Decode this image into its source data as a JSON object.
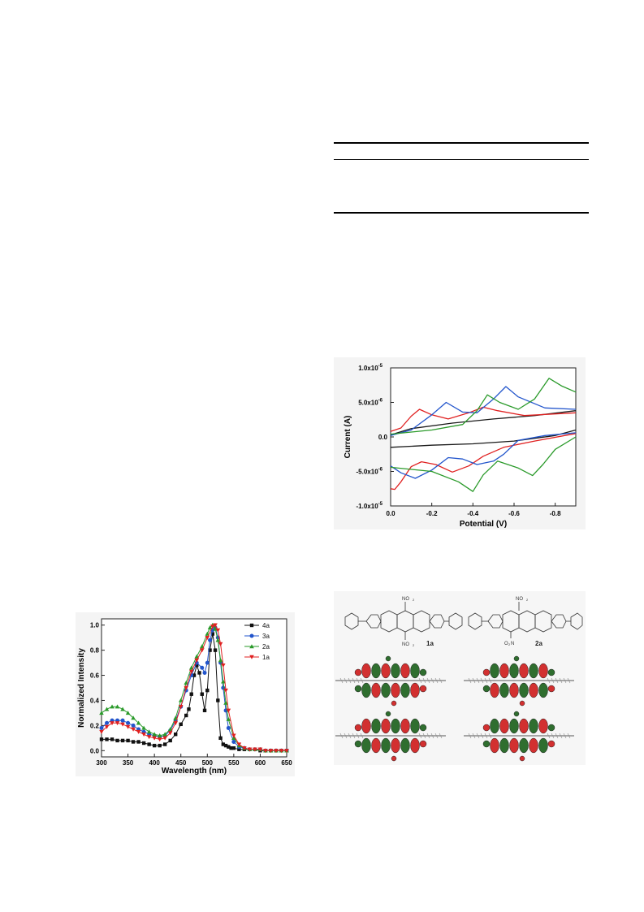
{
  "chart_data": [
    {
      "type": "line",
      "xlabel": "Potential  (V)",
      "ylabel": "Current  (A)",
      "xlim": [
        0.0,
        -0.9
      ],
      "ylim": [
        -1e-05,
        1e-05
      ],
      "x_ticks": [
        "0.0",
        "-0.2",
        "-0.4",
        "-0.6",
        "-0.8"
      ],
      "y_ticks": [
        "1.0x10",
        "5.0x10",
        "0.0",
        "-5.0x10",
        "-1.0x10"
      ],
      "y_tick_exponents": [
        "-5",
        "-6",
        "",
        "-6",
        "-5"
      ],
      "series": [
        {
          "color": "#1a1a1a",
          "forward": [
            [
              0.0,
              3e-07
            ],
            [
              -0.1,
              1.2e-06
            ],
            [
              -0.3,
              2e-06
            ],
            [
              -0.5,
              2.6e-06
            ],
            [
              -0.7,
              3.1e-06
            ],
            [
              -0.9,
              3.8e-06
            ]
          ],
          "reverse": [
            [
              -0.9,
              1e-06
            ],
            [
              -0.8,
              2e-07
            ],
            [
              -0.6,
              -6e-07
            ],
            [
              -0.4,
              -1e-06
            ],
            [
              -0.2,
              -1.2e-06
            ],
            [
              0.0,
              -1.5e-06
            ]
          ]
        },
        {
          "color": "#e02020",
          "forward": [
            [
              0.0,
              8e-07
            ],
            [
              -0.05,
              1.3e-06
            ],
            [
              -0.1,
              3e-06
            ],
            [
              -0.14,
              4e-06
            ],
            [
              -0.2,
              3.2e-06
            ],
            [
              -0.28,
              2.6e-06
            ],
            [
              -0.38,
              3.5e-06
            ],
            [
              -0.45,
              4.3e-06
            ],
            [
              -0.52,
              3.8e-06
            ],
            [
              -0.65,
              3.1e-06
            ],
            [
              -0.9,
              3.5e-06
            ]
          ],
          "reverse": [
            [
              -0.9,
              5e-07
            ],
            [
              -0.7,
              -6e-07
            ],
            [
              -0.55,
              -1.5e-06
            ],
            [
              -0.45,
              -2.8e-06
            ],
            [
              -0.38,
              -4.2e-06
            ],
            [
              -0.3,
              -5.1e-06
            ],
            [
              -0.22,
              -4e-06
            ],
            [
              -0.15,
              -3.6e-06
            ],
            [
              -0.1,
              -4.3e-06
            ],
            [
              -0.05,
              -6.5e-06
            ],
            [
              -0.02,
              -7.6e-06
            ],
            [
              0.0,
              -7.5e-06
            ]
          ]
        },
        {
          "color": "#2255cc",
          "forward": [
            [
              0.0,
              2e-07
            ],
            [
              -0.1,
              1e-06
            ],
            [
              -0.2,
              3.2e-06
            ],
            [
              -0.27,
              5e-06
            ],
            [
              -0.35,
              3.6e-06
            ],
            [
              -0.42,
              3.5e-06
            ],
            [
              -0.5,
              5.5e-06
            ],
            [
              -0.56,
              7.3e-06
            ],
            [
              -0.62,
              5.8e-06
            ],
            [
              -0.75,
              4.2e-06
            ],
            [
              -0.9,
              4e-06
            ]
          ],
          "reverse": [
            [
              -0.9,
              6e-07
            ],
            [
              -0.75,
              2e-07
            ],
            [
              -0.62,
              -5e-07
            ],
            [
              -0.55,
              -2.5e-06
            ],
            [
              -0.5,
              -3.5e-06
            ],
            [
              -0.42,
              -4e-06
            ],
            [
              -0.35,
              -3.2e-06
            ],
            [
              -0.28,
              -3e-06
            ],
            [
              -0.2,
              -4.8e-06
            ],
            [
              -0.12,
              -6e-06
            ],
            [
              -0.05,
              -5.2e-06
            ],
            [
              0.0,
              -4.2e-06
            ]
          ]
        },
        {
          "color": "#2a9a2a",
          "forward": [
            [
              0.0,
              4e-07
            ],
            [
              -0.2,
              1e-06
            ],
            [
              -0.35,
              1.8e-06
            ],
            [
              -0.42,
              3.8e-06
            ],
            [
              -0.47,
              6.1e-06
            ],
            [
              -0.53,
              5e-06
            ],
            [
              -0.62,
              4e-06
            ],
            [
              -0.7,
              5.5e-06
            ],
            [
              -0.77,
              8.5e-06
            ],
            [
              -0.83,
              7.4e-06
            ],
            [
              -0.9,
              6.5e-06
            ]
          ],
          "reverse": [
            [
              -0.9,
              0.0
            ],
            [
              -0.8,
              -1.8e-06
            ],
            [
              -0.74,
              -4e-06
            ],
            [
              -0.69,
              -5.6e-06
            ],
            [
              -0.62,
              -4.5e-06
            ],
            [
              -0.52,
              -3.5e-06
            ],
            [
              -0.45,
              -5.5e-06
            ],
            [
              -0.4,
              -7.9e-06
            ],
            [
              -0.33,
              -6.5e-06
            ],
            [
              -0.2,
              -5e-06
            ],
            [
              0.0,
              -4.4e-06
            ]
          ]
        }
      ]
    },
    {
      "type": "line",
      "xlabel": "Wavelength  (nm)",
      "ylabel": "Normalized  Intensity",
      "xlim": [
        300,
        650
      ],
      "ylim": [
        -0.05,
        1.05
      ],
      "x_ticks": [
        300,
        350,
        400,
        450,
        500,
        550,
        600,
        650
      ],
      "y_ticks": [
        "0.0",
        "0.2",
        "0.4",
        "0.6",
        "0.8",
        "1.0"
      ],
      "legend_position": "top-right",
      "series": [
        {
          "name": "4a",
          "color": "#111111",
          "marker": "square",
          "x": [
            300,
            310,
            320,
            330,
            340,
            350,
            360,
            370,
            380,
            390,
            400,
            410,
            420,
            430,
            440,
            450,
            460,
            465,
            470,
            475,
            480,
            485,
            490,
            495,
            500,
            505,
            510,
            515,
            520,
            525,
            530,
            535,
            540,
            545,
            550,
            560,
            570,
            580,
            590,
            600,
            610,
            620,
            630,
            640,
            650
          ],
          "y": [
            0.09,
            0.09,
            0.09,
            0.08,
            0.08,
            0.08,
            0.07,
            0.07,
            0.06,
            0.05,
            0.04,
            0.04,
            0.05,
            0.08,
            0.13,
            0.21,
            0.28,
            0.33,
            0.45,
            0.6,
            0.68,
            0.62,
            0.45,
            0.32,
            0.48,
            0.8,
            0.93,
            0.8,
            0.4,
            0.1,
            0.05,
            0.04,
            0.03,
            0.02,
            0.02,
            0.01,
            0.01,
            0.01,
            0.01,
            0.0,
            0.0,
            0.0,
            0.0,
            0.0,
            0.0
          ]
        },
        {
          "name": "3a",
          "color": "#2255cc",
          "marker": "circle",
          "x": [
            300,
            310,
            320,
            330,
            340,
            350,
            360,
            370,
            380,
            390,
            400,
            410,
            420,
            430,
            440,
            450,
            460,
            470,
            480,
            490,
            495,
            500,
            505,
            510,
            515,
            520,
            525,
            530,
            535,
            540,
            550,
            560,
            570,
            580,
            590,
            600,
            610,
            620,
            630,
            640,
            650
          ],
          "y": [
            0.18,
            0.22,
            0.24,
            0.24,
            0.24,
            0.22,
            0.2,
            0.17,
            0.15,
            0.13,
            0.12,
            0.11,
            0.12,
            0.16,
            0.24,
            0.35,
            0.48,
            0.6,
            0.7,
            0.66,
            0.62,
            0.7,
            0.88,
            0.96,
            0.98,
            0.9,
            0.7,
            0.5,
            0.32,
            0.18,
            0.07,
            0.03,
            0.02,
            0.01,
            0.01,
            0.01,
            0.0,
            0.0,
            0.0,
            0.0,
            0.0
          ]
        },
        {
          "name": "2a",
          "color": "#2a9a2a",
          "marker": "triangle",
          "x": [
            300,
            310,
            320,
            330,
            340,
            350,
            360,
            370,
            380,
            390,
            400,
            410,
            420,
            430,
            440,
            450,
            460,
            470,
            480,
            490,
            500,
            505,
            510,
            515,
            520,
            525,
            530,
            535,
            540,
            550,
            560,
            570,
            580,
            590,
            600,
            610,
            620,
            630,
            640,
            650
          ],
          "y": [
            0.3,
            0.33,
            0.35,
            0.35,
            0.33,
            0.3,
            0.26,
            0.22,
            0.18,
            0.15,
            0.13,
            0.12,
            0.13,
            0.17,
            0.26,
            0.4,
            0.54,
            0.66,
            0.75,
            0.83,
            0.93,
            0.98,
            1.0,
            0.97,
            0.88,
            0.72,
            0.55,
            0.38,
            0.25,
            0.1,
            0.04,
            0.02,
            0.01,
            0.01,
            0.01,
            0.0,
            0.0,
            0.0,
            0.0,
            0.0
          ]
        },
        {
          "name": "1a",
          "color": "#e02020",
          "marker": "triangle-down",
          "x": [
            300,
            310,
            320,
            330,
            340,
            350,
            360,
            370,
            380,
            390,
            400,
            410,
            420,
            430,
            440,
            450,
            460,
            470,
            480,
            490,
            500,
            510,
            515,
            520,
            525,
            530,
            535,
            540,
            550,
            560,
            570,
            580,
            590,
            600,
            610,
            620,
            630,
            640,
            650
          ],
          "y": [
            0.15,
            0.19,
            0.22,
            0.22,
            0.21,
            0.19,
            0.17,
            0.15,
            0.13,
            0.11,
            0.1,
            0.09,
            0.1,
            0.14,
            0.22,
            0.35,
            0.5,
            0.63,
            0.72,
            0.8,
            0.9,
            0.99,
            1.0,
            0.96,
            0.85,
            0.68,
            0.48,
            0.32,
            0.12,
            0.05,
            0.02,
            0.01,
            0.01,
            0.01,
            0.0,
            0.0,
            0.0,
            0.0,
            0.0
          ]
        }
      ]
    }
  ],
  "structures": {
    "left_label": "1a",
    "right_label": "2a",
    "nitro_top": "NO",
    "nitro_sub": "2",
    "nitro_alt": "O",
    "nitro_alt_sub": "2",
    "nitro_alt_n": "N"
  }
}
